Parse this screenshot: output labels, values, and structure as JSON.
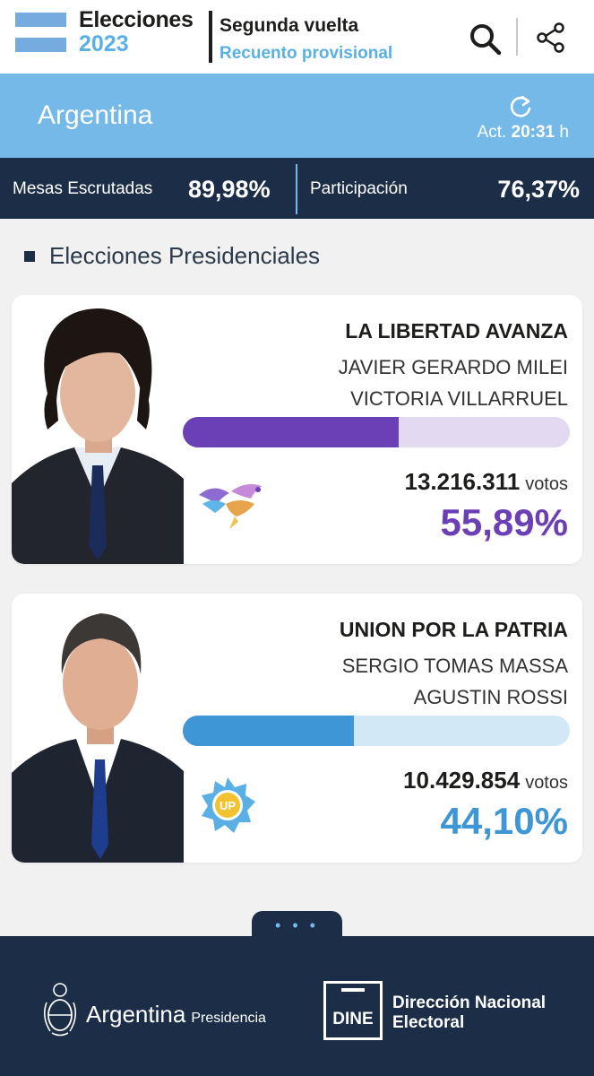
{
  "header": {
    "brand_title": "Elecciones",
    "brand_year": "2023",
    "round_title": "Segunda vuelta",
    "round_subtitle": "Recuento provisional",
    "search_icon": "search-icon",
    "share_icon": "share-icon"
  },
  "region": {
    "name": "Argentina",
    "updated_label": "Act.",
    "updated_time": "20:31",
    "updated_unit": "h",
    "refresh_icon": "refresh-icon"
  },
  "stats": {
    "tables_label": "Mesas Escrutadas",
    "tables_value": "89,98%",
    "participation_label": "Participación",
    "participation_value": "76,37%"
  },
  "section": {
    "title": "Elecciones Presidenciales"
  },
  "candidates": [
    {
      "party": "LA LIBERTAD AVANZA",
      "president": "JAVIER GERARDO MILEI",
      "vice": "VICTORIA VILLARRUEL",
      "votes": "13.216.311",
      "votes_unit": "votos",
      "percentage": "55,89%",
      "share": 0.5589,
      "color": "#6b3fb5",
      "track_color": "#e3d9f1",
      "logo_icon": "eagle-logo-icon"
    },
    {
      "party": "UNION POR LA PATRIA",
      "president": "SERGIO TOMAS MASSA",
      "vice": "AGUSTIN ROSSI",
      "votes": "10.429.854",
      "votes_unit": "votos",
      "percentage": "44,10%",
      "share": 0.441,
      "color": "#3e96d6",
      "track_color": "#d2e8f7",
      "logo_icon": "up-sun-logo-icon"
    }
  ],
  "footer": {
    "more_dots": "• • •",
    "gov_name": "Argentina",
    "gov_sub": "Presidencia",
    "dine_logo_text": "DINE",
    "dine_line1": "Dirección Nacional",
    "dine_line2": "Electoral"
  },
  "colors": {
    "navy": "#1c2e47",
    "sky": "#74b9e7",
    "accent_blue": "#5ab0e4"
  }
}
